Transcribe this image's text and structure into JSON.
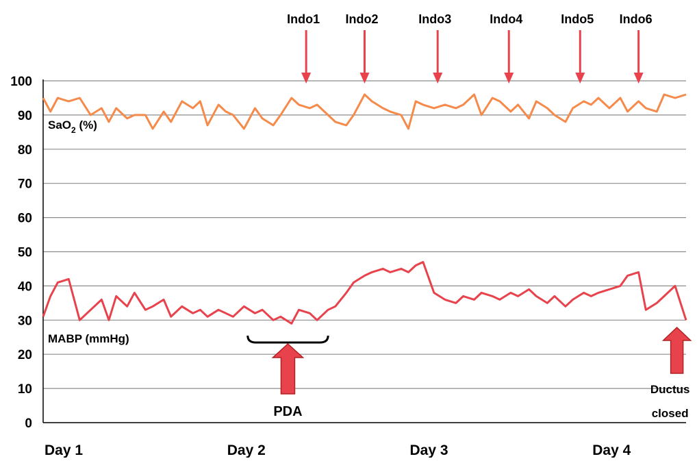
{
  "chart_data": {
    "type": "line",
    "title": "",
    "xlabel": "",
    "ylabel": "",
    "ylim": [
      0,
      100
    ],
    "y_ticks": [
      0,
      10,
      20,
      30,
      40,
      50,
      60,
      70,
      80,
      90,
      100
    ],
    "grid": "horizontal",
    "x_range": [
      1,
      4.52
    ],
    "x_day_labels": [
      {
        "label": "Day 1",
        "x": 1
      },
      {
        "label": "Day 2",
        "x": 2
      },
      {
        "label": "Day 3",
        "x": 3
      },
      {
        "label": "Day 4",
        "x": 4
      }
    ],
    "series": [
      {
        "name": "SaO2 (%)",
        "label_main": "SaO",
        "label_sub": "2",
        "label_tail": " (%)",
        "color": "#f58a4b",
        "x": [
          1.0,
          1.04,
          1.08,
          1.14,
          1.2,
          1.26,
          1.32,
          1.36,
          1.4,
          1.46,
          1.5,
          1.56,
          1.6,
          1.66,
          1.7,
          1.76,
          1.82,
          1.86,
          1.9,
          1.96,
          2.0,
          2.04,
          2.1,
          2.16,
          2.2,
          2.26,
          2.3,
          2.36,
          2.4,
          2.46,
          2.5,
          2.56,
          2.6,
          2.66,
          2.7,
          2.76,
          2.8,
          2.86,
          2.9,
          2.96,
          3.0,
          3.04,
          3.08,
          3.14,
          3.2,
          3.26,
          3.3,
          3.36,
          3.4,
          3.46,
          3.5,
          3.56,
          3.6,
          3.66,
          3.7,
          3.76,
          3.8,
          3.86,
          3.9,
          3.96,
          4.0,
          4.04,
          4.1,
          4.16,
          4.2,
          4.26,
          4.3,
          4.36,
          4.4,
          4.46,
          4.52
        ],
        "values": [
          95,
          91,
          95,
          94,
          95,
          90,
          92,
          88,
          92,
          89,
          90,
          90,
          86,
          91,
          88,
          94,
          92,
          94,
          87,
          93,
          91,
          90,
          86,
          92,
          89,
          87,
          90,
          95,
          93,
          92,
          93,
          90,
          88,
          87,
          90,
          96,
          94,
          92,
          91,
          90,
          86,
          94,
          93,
          92,
          93,
          92,
          93,
          96,
          90,
          95,
          94,
          91,
          93,
          89,
          94,
          92,
          90,
          88,
          92,
          94,
          93,
          95,
          92,
          95,
          91,
          94,
          92,
          91,
          96,
          95,
          96
        ]
      },
      {
        "name": "MABP (mmHg)",
        "color": "#e8424c",
        "x": [
          1.0,
          1.04,
          1.08,
          1.14,
          1.2,
          1.26,
          1.32,
          1.36,
          1.4,
          1.46,
          1.5,
          1.56,
          1.6,
          1.66,
          1.7,
          1.76,
          1.82,
          1.86,
          1.9,
          1.96,
          2.0,
          2.04,
          2.1,
          2.16,
          2.2,
          2.26,
          2.3,
          2.36,
          2.4,
          2.46,
          2.5,
          2.56,
          2.6,
          2.66,
          2.7,
          2.76,
          2.8,
          2.86,
          2.9,
          2.96,
          3.0,
          3.04,
          3.08,
          3.14,
          3.2,
          3.26,
          3.3,
          3.36,
          3.4,
          3.46,
          3.5,
          3.56,
          3.6,
          3.66,
          3.7,
          3.76,
          3.8,
          3.86,
          3.9,
          3.96,
          4.0,
          4.04,
          4.1,
          4.16,
          4.2,
          4.26,
          4.3,
          4.36,
          4.4,
          4.46,
          4.52
        ],
        "values": [
          31,
          37,
          41,
          42,
          30,
          33,
          36,
          30,
          37,
          34,
          38,
          33,
          34,
          36,
          31,
          34,
          32,
          33,
          31,
          33,
          32,
          31,
          34,
          32,
          33,
          30,
          31,
          29,
          33,
          32,
          30,
          33,
          34,
          38,
          41,
          43,
          44,
          45,
          44,
          45,
          44,
          46,
          47,
          38,
          36,
          35,
          37,
          36,
          38,
          37,
          36,
          38,
          37,
          39,
          37,
          35,
          37,
          34,
          36,
          38,
          37,
          38,
          39,
          40,
          43,
          44,
          33,
          35,
          37,
          40,
          30
        ]
      }
    ],
    "annotations": {
      "indo": [
        {
          "label": "Indo1",
          "x": 2.44
        },
        {
          "label": "Indo2",
          "x": 2.76
        },
        {
          "label": "Indo3",
          "x": 3.16
        },
        {
          "label": "Indo4",
          "x": 3.55
        },
        {
          "label": "Indo5",
          "x": 3.94
        },
        {
          "label": "Indo6",
          "x": 4.26
        }
      ],
      "pda": {
        "label": "PDA",
        "x_start": 2.12,
        "x_end": 2.56
      },
      "ductus": {
        "line1": "Ductus",
        "line2": "closed",
        "x": 4.47
      }
    }
  }
}
